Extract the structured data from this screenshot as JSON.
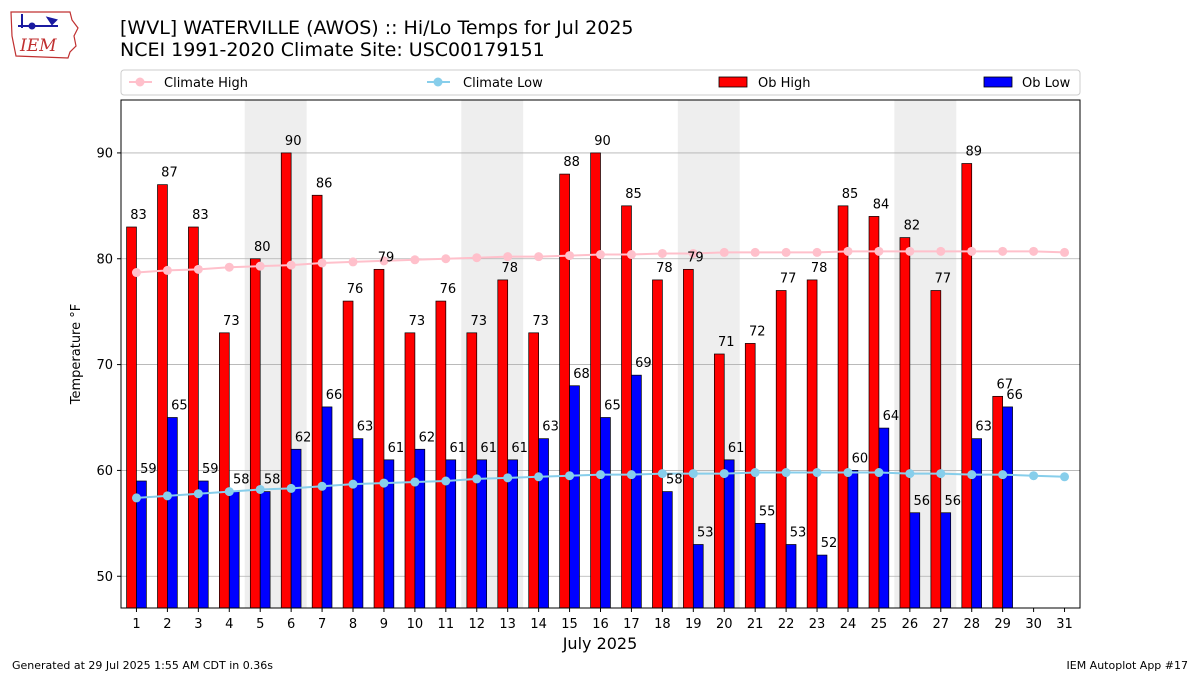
{
  "logo": {
    "text": "IEM"
  },
  "header": {
    "title_line1": "[WVL] WATERVILLE (AWOS) :: Hi/Lo Temps for Jul 2025",
    "title_line2": "NCEI 1991-2020 Climate Site: USC00179151"
  },
  "footer": {
    "left": "Generated at 29 Jul 2025 1:55 AM CDT in 0.36s",
    "right": "IEM Autoplot App #17"
  },
  "colors": {
    "ob_high": "#ff0000",
    "ob_low": "#0000ff",
    "climate_high": "#ffc0cb",
    "climate_low": "#87ceeb",
    "weekend_shade": "#eeeeee",
    "grid": "#b0b0b0"
  },
  "chart_data": {
    "type": "bar",
    "xlabel": "July 2025",
    "ylabel": "Temperature °F",
    "ylim": [
      47,
      95
    ],
    "yticks": [
      50,
      60,
      70,
      80,
      90
    ],
    "grid": "horizontal",
    "legend_position": "top",
    "categories": [
      "1",
      "2",
      "3",
      "4",
      "5",
      "6",
      "7",
      "8",
      "9",
      "10",
      "11",
      "12",
      "13",
      "14",
      "15",
      "16",
      "17",
      "18",
      "19",
      "20",
      "21",
      "22",
      "23",
      "24",
      "25",
      "26",
      "27",
      "28",
      "29",
      "30",
      "31"
    ],
    "shaded_days": [
      [
        5,
        6
      ],
      [
        12,
        13
      ],
      [
        19,
        20
      ],
      [
        26,
        27
      ]
    ],
    "legend": [
      "Climate High",
      "Climate Low",
      "Ob High",
      "Ob Low"
    ],
    "series": [
      {
        "name": "Ob High",
        "kind": "bar",
        "values": [
          83,
          87,
          83,
          73,
          80,
          90,
          86,
          76,
          79,
          73,
          76,
          73,
          78,
          73,
          88,
          90,
          85,
          78,
          79,
          71,
          72,
          77,
          78,
          85,
          84,
          82,
          77,
          89,
          67,
          null,
          null
        ]
      },
      {
        "name": "Ob Low",
        "kind": "bar",
        "values": [
          59,
          65,
          59,
          58,
          58,
          62,
          66,
          63,
          61,
          62,
          61,
          61,
          61,
          63,
          68,
          65,
          69,
          58,
          53,
          61,
          55,
          53,
          52,
          60,
          64,
          56,
          56,
          63,
          66,
          null,
          null
        ]
      },
      {
        "name": "Climate High",
        "kind": "line",
        "values": [
          78.7,
          78.9,
          79.0,
          79.2,
          79.3,
          79.4,
          79.6,
          79.7,
          79.8,
          79.9,
          80.0,
          80.1,
          80.2,
          80.2,
          80.3,
          80.4,
          80.4,
          80.5,
          80.5,
          80.6,
          80.6,
          80.6,
          80.6,
          80.7,
          80.7,
          80.7,
          80.7,
          80.7,
          80.7,
          80.7,
          80.6
        ]
      },
      {
        "name": "Climate Low",
        "kind": "line",
        "values": [
          57.4,
          57.6,
          57.8,
          58.0,
          58.2,
          58.3,
          58.5,
          58.7,
          58.8,
          58.9,
          59.0,
          59.2,
          59.3,
          59.4,
          59.5,
          59.6,
          59.6,
          59.7,
          59.7,
          59.7,
          59.8,
          59.8,
          59.8,
          59.8,
          59.8,
          59.7,
          59.7,
          59.6,
          59.6,
          59.5,
          59.4
        ]
      }
    ]
  }
}
